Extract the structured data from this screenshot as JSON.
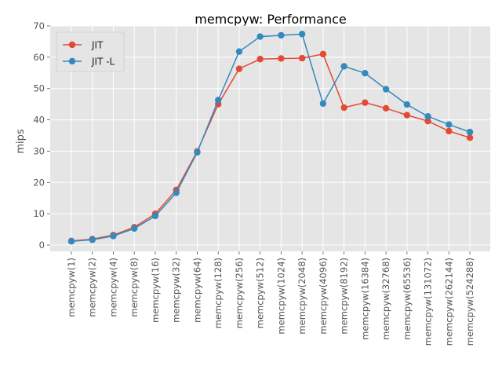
{
  "chart_data": {
    "type": "line",
    "title": "memcpyw: Performance",
    "xlabel": "",
    "ylabel": "mips",
    "ylim": [
      -2,
      70
    ],
    "yticks": [
      0,
      10,
      20,
      30,
      40,
      50,
      60,
      70
    ],
    "grid": true,
    "legend_position": "top-left",
    "categories": [
      "memcpyw(1)",
      "memcpyw(2)",
      "memcpyw(4)",
      "memcpyw(8)",
      "memcpyw(16)",
      "memcpyw(32)",
      "memcpyw(64)",
      "memcpyw(128)",
      "memcpyw(256)",
      "memcpyw(512)",
      "memcpyw(1024)",
      "memcpyw(2048)",
      "memcpyw(4096)",
      "memcpyw(8192)",
      "memcpyw(16384)",
      "memcpyw(32768)",
      "memcpyw(65536)",
      "memcpyw(131072)",
      "memcpyw(262144)",
      "memcpyw(524288)"
    ],
    "series": [
      {
        "name": "JIT",
        "color": "#E24A33",
        "values": [
          1.3,
          1.9,
          3.2,
          5.7,
          10.0,
          17.6,
          29.9,
          45.0,
          56.3,
          59.4,
          59.6,
          59.7,
          61.0,
          43.9,
          45.5,
          43.7,
          41.5,
          39.6,
          36.4,
          34.3
        ]
      },
      {
        "name": "JIT -L",
        "color": "#348ABD",
        "values": [
          1.2,
          1.7,
          2.9,
          5.3,
          9.3,
          16.7,
          29.6,
          46.3,
          61.8,
          66.6,
          67.0,
          67.4,
          45.2,
          57.1,
          54.9,
          49.8,
          44.9,
          41.1,
          38.5,
          36.1
        ]
      }
    ]
  }
}
